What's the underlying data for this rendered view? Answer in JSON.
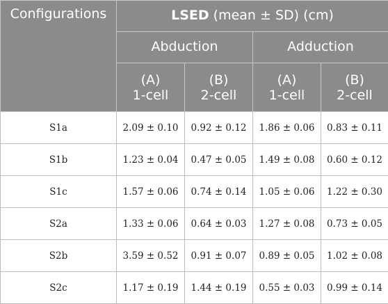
{
  "header": {
    "configurations": "Configurations",
    "lsed_bold": "LSED",
    "lsed_rest": " (mean ± SD) (cm)",
    "abduction": "Abduction",
    "adduction": "Adduction",
    "sub": [
      {
        "line1": "(A)",
        "line2": "1-cell"
      },
      {
        "line1": "(B)",
        "line2": "2-cell"
      },
      {
        "line1": "(A)",
        "line2": "1-cell"
      },
      {
        "line1": "(B)",
        "line2": "2-cell"
      }
    ]
  },
  "rows": [
    {
      "config": "S1a",
      "cells": [
        "2.09 ± 0.10",
        "0.92 ± 0.12",
        "1.86 ± 0.06",
        "0.83 ± 0.11"
      ]
    },
    {
      "config": "S1b",
      "cells": [
        "1.23 ± 0.04",
        "0.47 ± 0.05",
        "1.49 ± 0.08",
        "0.60 ± 0.12"
      ]
    },
    {
      "config": "S1c",
      "cells": [
        "1.57 ± 0.06",
        "0.74 ± 0.14",
        "1.05 ± 0.06",
        "1.22 ± 0.30"
      ]
    },
    {
      "config": "S2a",
      "cells": [
        "1.33 ± 0.06",
        "0.64 ± 0.03",
        "1.27 ± 0.08",
        "0.73 ± 0.05"
      ]
    },
    {
      "config": "S2b",
      "cells": [
        "3.59 ± 0.52",
        "0.91 ± 0.07",
        "0.89 ± 0.05",
        "1.02 ± 0.08"
      ]
    },
    {
      "config": "S2c",
      "cells": [
        "1.17 ± 0.19",
        "1.44 ± 0.19",
        "0.55 ± 0.03",
        "0.99 ± 0.14"
      ]
    }
  ],
  "colors": {
    "header_bg": "#8b8b8b",
    "header_text": "#ffffff",
    "body_text": "#222222",
    "border": "#bdbdbd"
  }
}
